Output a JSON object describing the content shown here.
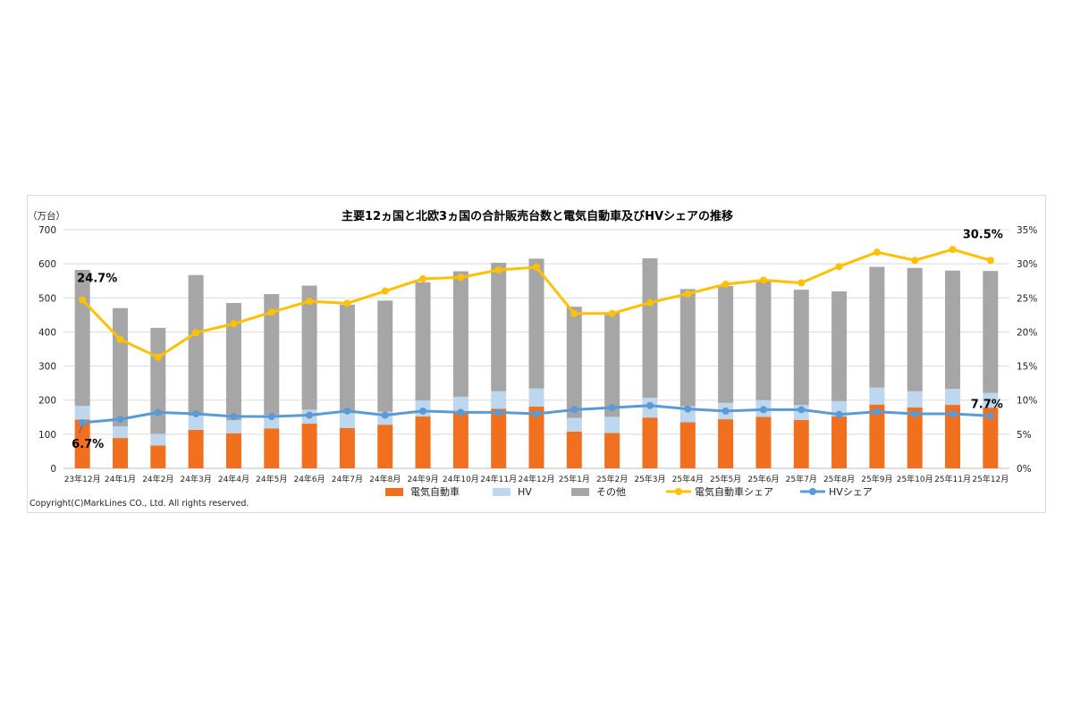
{
  "chart_data": {
    "type": "bar",
    "title": "主要12ヵ国と北欧3ヵ国の合計販売台数と電気自動車及びHVシェアの推移",
    "ylabel": "（万台）",
    "ylim": [
      0,
      700
    ],
    "y2lim": [
      0,
      35
    ],
    "y_ticks": [
      "0",
      "100",
      "200",
      "300",
      "400",
      "500",
      "600",
      "700"
    ],
    "y2_ticks": [
      "0%",
      "5%",
      "10%",
      "15%",
      "20%",
      "25%",
      "30%",
      "35%"
    ],
    "stacked": true,
    "grid": true,
    "legend_position": "bottom",
    "categories": [
      "23年12月",
      "24年1月",
      "24年2月",
      "24年3月",
      "24年4月",
      "24年5月",
      "24年6月",
      "24年7月",
      "24年8月",
      "24年9月",
      "24年10月",
      "24年11月",
      "24年12月",
      "25年1月",
      "25年2月",
      "25年3月",
      "25年4月",
      "25年5月",
      "25年6月",
      "25年7月",
      "25年8月",
      "25年9月",
      "25年10月",
      "25年11月",
      "25年12月"
    ],
    "series": [
      {
        "name": "電気自動車",
        "kind": "bar",
        "axis": "left",
        "color": "#f07020",
        "values": [
          143,
          89,
          67,
          113,
          103,
          117,
          131,
          118,
          128,
          152,
          163,
          175,
          181,
          108,
          104,
          149,
          135,
          144,
          151,
          142,
          152,
          187,
          179,
          186,
          178
        ]
      },
      {
        "name": "HV",
        "kind": "bar",
        "axis": "left",
        "color": "#bdd7ee",
        "values": [
          40,
          34,
          34,
          41,
          38,
          40,
          41,
          44,
          38,
          47,
          47,
          51,
          53,
          40,
          47,
          58,
          47,
          48,
          49,
          44,
          45,
          50,
          47,
          47,
          43
        ]
      },
      {
        "name": "その他",
        "kind": "bar",
        "axis": "left",
        "color": "#a6a6a6",
        "values": [
          399,
          347,
          311,
          413,
          344,
          354,
          364,
          318,
          326,
          347,
          368,
          377,
          381,
          326,
          307,
          409,
          344,
          343,
          350,
          338,
          322,
          354,
          362,
          347,
          358
        ]
      },
      {
        "name": "電気自動車シェア",
        "kind": "line",
        "axis": "right",
        "color": "#ffc000",
        "values": [
          24.7,
          18.9,
          16.3,
          19.9,
          21.2,
          22.9,
          24.5,
          24.2,
          26.0,
          27.8,
          28.0,
          29.1,
          29.5,
          22.7,
          22.7,
          24.3,
          25.6,
          27.0,
          27.6,
          27.2,
          29.6,
          31.7,
          30.5,
          32.1,
          30.5
        ]
      },
      {
        "name": "HVシェア",
        "kind": "line",
        "axis": "right",
        "color": "#5b9bd5",
        "values": [
          6.7,
          7.2,
          8.2,
          8.0,
          7.6,
          7.6,
          7.8,
          8.4,
          7.8,
          8.4,
          8.2,
          8.2,
          8.0,
          8.6,
          8.9,
          9.2,
          8.7,
          8.4,
          8.6,
          8.6,
          7.9,
          8.3,
          8.0,
          8.0,
          7.7
        ]
      }
    ],
    "annotations": [
      "24.7%",
      "6.7%",
      "30.5%",
      "7.7%"
    ]
  },
  "copyright": "Copyright(C)MarkLines CO., Ltd. All rights reserved."
}
